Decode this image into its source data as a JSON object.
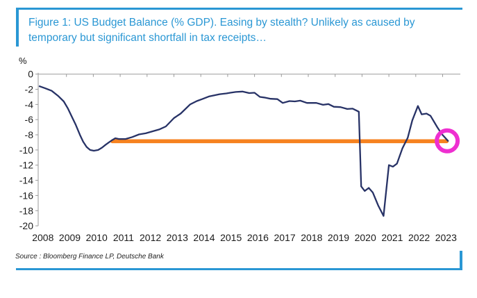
{
  "figure": {
    "title_line1": "Figure 1: US Budget Balance (% GDP). Easing by stealth? Unlikely as caused by",
    "title_line2": "temporary but significant shortfall in tax receipts…",
    "source": "Source : Bloomberg Finance LP, Deutsche Bank",
    "accent_blue": "#2a97d4"
  },
  "chart_data": {
    "type": "line",
    "title": "Figure 1: US Budget Balance (% GDP). Easing by stealth? Unlikely as caused by temporary but significant shortfall in tax receipts…",
    "xlabel": "",
    "ylabel": "%",
    "ylim": [
      -20,
      0
    ],
    "xlim": [
      2008,
      2023.6
    ],
    "grid": false,
    "legend_position": "none",
    "x_tick_labels": [
      "2008",
      "2009",
      "2010",
      "2011",
      "2012",
      "2013",
      "2014",
      "2015",
      "2016",
      "2017",
      "2018",
      "2019",
      "2020",
      "2021",
      "2022",
      "2023"
    ],
    "y_tick_labels": [
      "0",
      "-2",
      "-4",
      "-6",
      "-8",
      "-10",
      "-12",
      "-14",
      "-16",
      "-18",
      "-20"
    ],
    "series": [
      {
        "name": "US Budget Balance (% GDP)",
        "color": "#273266",
        "points": [
          [
            2008.0,
            -1.6
          ],
          [
            2008.2,
            -1.85
          ],
          [
            2008.45,
            -2.2
          ],
          [
            2008.7,
            -2.9
          ],
          [
            2008.9,
            -3.6
          ],
          [
            2009.05,
            -4.5
          ],
          [
            2009.2,
            -5.6
          ],
          [
            2009.35,
            -6.7
          ],
          [
            2009.5,
            -8.0
          ],
          [
            2009.62,
            -8.9
          ],
          [
            2009.75,
            -9.6
          ],
          [
            2009.88,
            -10.0
          ],
          [
            2010.02,
            -10.1
          ],
          [
            2010.18,
            -10.0
          ],
          [
            2010.32,
            -9.7
          ],
          [
            2010.46,
            -9.3
          ],
          [
            2010.6,
            -8.95
          ],
          [
            2010.72,
            -8.65
          ],
          [
            2010.82,
            -8.45
          ],
          [
            2010.95,
            -8.55
          ],
          [
            2011.2,
            -8.55
          ],
          [
            2011.45,
            -8.3
          ],
          [
            2011.7,
            -7.95
          ],
          [
            2011.95,
            -7.8
          ],
          [
            2012.2,
            -7.55
          ],
          [
            2012.45,
            -7.3
          ],
          [
            2012.7,
            -6.9
          ],
          [
            2013.0,
            -5.8
          ],
          [
            2013.25,
            -5.2
          ],
          [
            2013.6,
            -4.0
          ],
          [
            2013.85,
            -3.55
          ],
          [
            2014.05,
            -3.3
          ],
          [
            2014.3,
            -2.95
          ],
          [
            2014.5,
            -2.8
          ],
          [
            2014.7,
            -2.65
          ],
          [
            2014.95,
            -2.55
          ],
          [
            2015.1,
            -2.45
          ],
          [
            2015.3,
            -2.35
          ],
          [
            2015.55,
            -2.3
          ],
          [
            2015.8,
            -2.5
          ],
          [
            2016.0,
            -2.45
          ],
          [
            2016.2,
            -3.0
          ],
          [
            2016.4,
            -3.1
          ],
          [
            2016.6,
            -3.25
          ],
          [
            2016.85,
            -3.3
          ],
          [
            2017.05,
            -3.8
          ],
          [
            2017.3,
            -3.55
          ],
          [
            2017.5,
            -3.6
          ],
          [
            2017.7,
            -3.5
          ],
          [
            2017.95,
            -3.8
          ],
          [
            2018.3,
            -3.8
          ],
          [
            2018.55,
            -4.05
          ],
          [
            2018.75,
            -3.95
          ],
          [
            2018.95,
            -4.3
          ],
          [
            2019.2,
            -4.35
          ],
          [
            2019.45,
            -4.6
          ],
          [
            2019.65,
            -4.55
          ],
          [
            2019.88,
            -4.95
          ],
          [
            2019.97,
            -14.8
          ],
          [
            2020.1,
            -15.4
          ],
          [
            2020.25,
            -15.0
          ],
          [
            2020.4,
            -15.6
          ],
          [
            2020.6,
            -17.3
          ],
          [
            2020.8,
            -18.7
          ],
          [
            2021.0,
            -12.0
          ],
          [
            2021.15,
            -12.2
          ],
          [
            2021.3,
            -11.8
          ],
          [
            2021.5,
            -9.8
          ],
          [
            2021.7,
            -8.4
          ],
          [
            2021.87,
            -6.1
          ],
          [
            2022.08,
            -4.2
          ],
          [
            2022.22,
            -5.3
          ],
          [
            2022.4,
            -5.2
          ],
          [
            2022.55,
            -5.5
          ],
          [
            2022.8,
            -7.0
          ],
          [
            2022.97,
            -7.9
          ],
          [
            2023.2,
            -8.8
          ]
        ]
      }
    ],
    "annotations": {
      "reference_line": {
        "description": "horizontal highlight line at 2011 deficit level",
        "color": "#f6821f",
        "value": -8.85,
        "x_start": 2010.71,
        "x_end": 2023.15
      },
      "highlight_circle": {
        "description": "circle marking latest data point",
        "color": "#ee2fd0",
        "x": 2023.17,
        "y": -8.8
      }
    }
  }
}
